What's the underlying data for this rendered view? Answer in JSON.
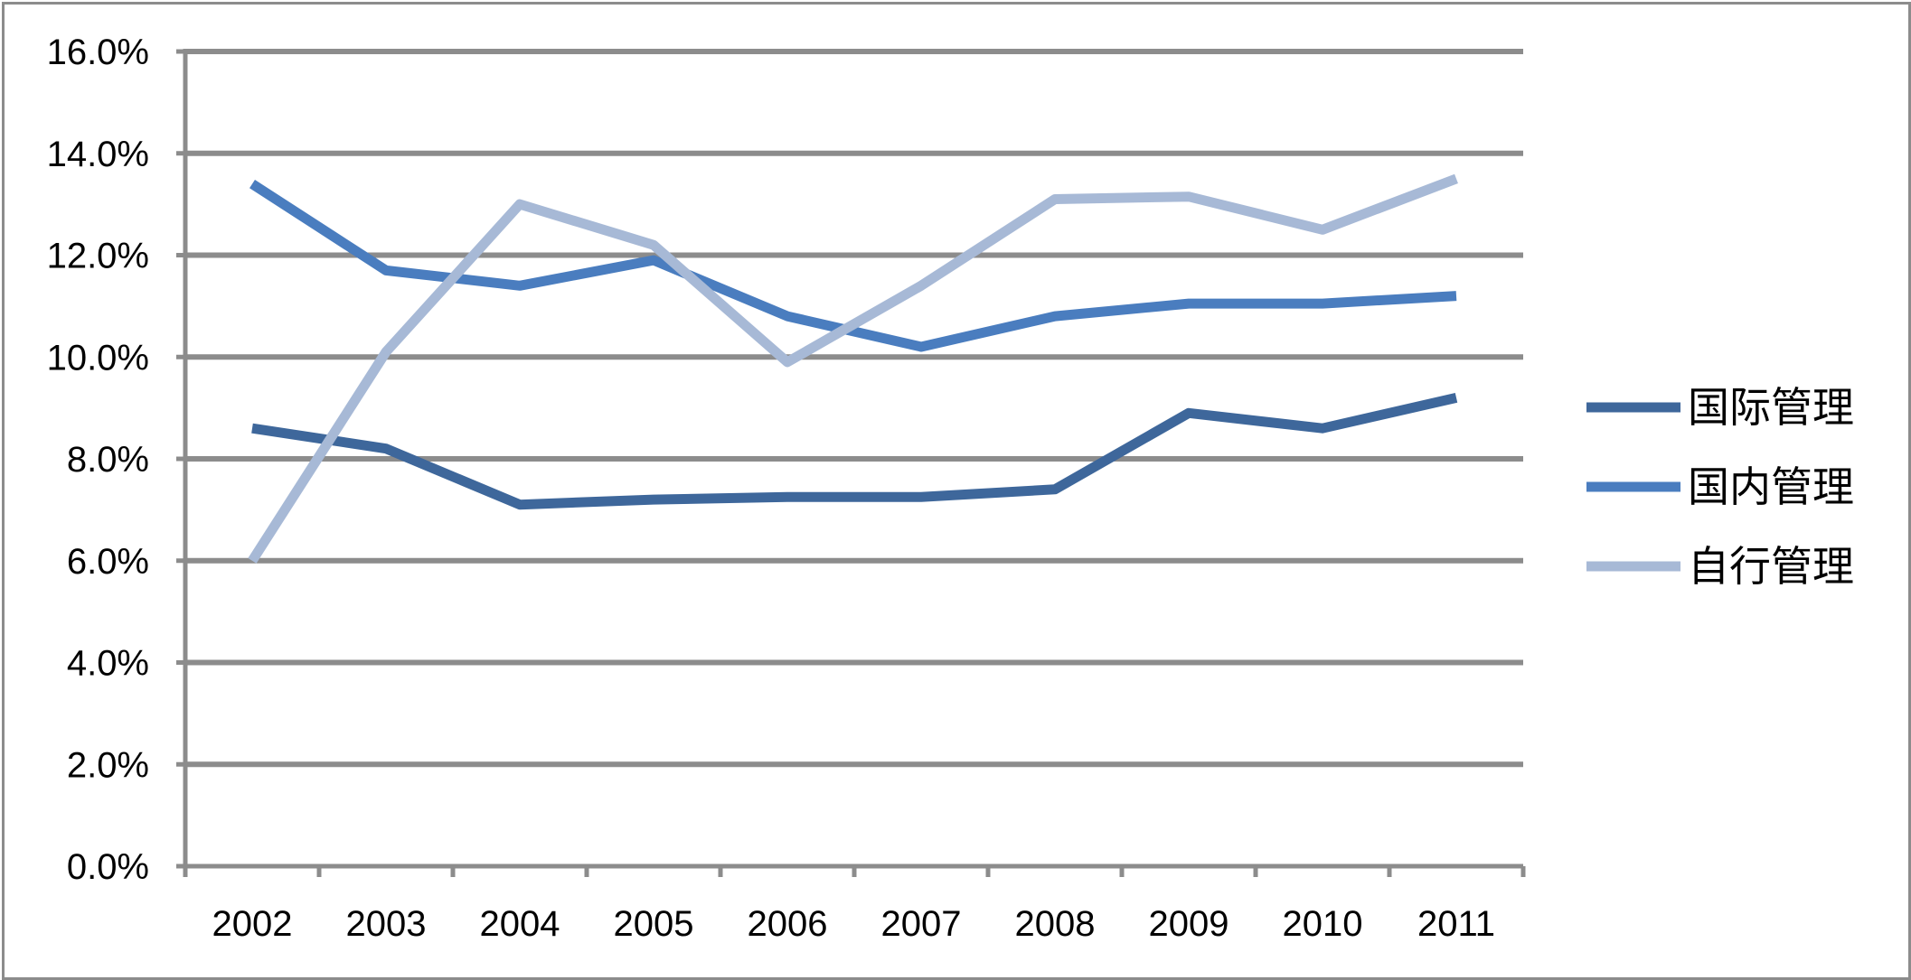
{
  "chart_data": {
    "type": "line",
    "title": "",
    "xlabel": "",
    "ylabel": "",
    "categories": [
      "2002",
      "2003",
      "2004",
      "2005",
      "2006",
      "2007",
      "2008",
      "2009",
      "2010",
      "2011"
    ],
    "y_ticks": [
      "0.0%",
      "2.0%",
      "4.0%",
      "6.0%",
      "8.0%",
      "10.0%",
      "12.0%",
      "14.0%",
      "16.0%"
    ],
    "ylim": [
      0,
      16
    ],
    "grid": true,
    "legend_position": "right",
    "series": [
      {
        "name": "国际管理",
        "color": "#3e679b",
        "values": [
          8.6,
          8.2,
          7.1,
          7.2,
          7.25,
          7.25,
          7.4,
          8.9,
          8.6,
          9.2
        ]
      },
      {
        "name": "国内管理",
        "color": "#4a7dbf",
        "values": [
          13.4,
          11.7,
          11.4,
          11.9,
          10.8,
          10.2,
          10.8,
          11.05,
          11.05,
          11.2
        ]
      },
      {
        "name": "自行管理",
        "color": "#a7b9d6",
        "values": [
          6.0,
          10.1,
          13.0,
          12.2,
          9.9,
          11.4,
          13.1,
          13.15,
          12.5,
          13.5
        ]
      }
    ]
  }
}
